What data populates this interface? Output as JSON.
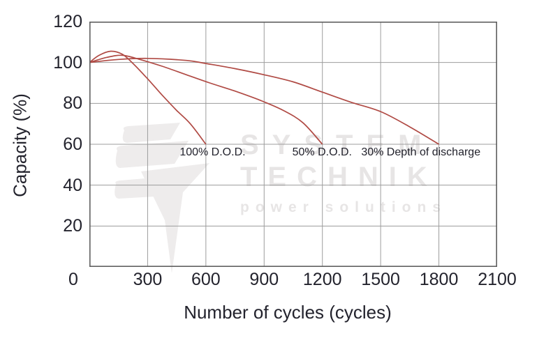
{
  "chart_data": {
    "type": "line",
    "title": "",
    "xlabel": "Number of cycles (cycles)",
    "ylabel": "Capacity (%)",
    "xlim": [
      0,
      2100
    ],
    "ylim": [
      0,
      120
    ],
    "x_ticks": [
      0,
      300,
      600,
      900,
      1200,
      1500,
      1800,
      2100
    ],
    "y_ticks": [
      20,
      40,
      60,
      80,
      100,
      120
    ],
    "grid": true,
    "legend": "inline-annotations",
    "series": [
      {
        "name": "100% D.O.D.",
        "points": [
          [
            0,
            100
          ],
          [
            50,
            103.5
          ],
          [
            110,
            105.5
          ],
          [
            170,
            104
          ],
          [
            230,
            99
          ],
          [
            300,
            92
          ],
          [
            380,
            83.5
          ],
          [
            450,
            76.5
          ],
          [
            520,
            70
          ],
          [
            600,
            60
          ]
        ]
      },
      {
        "name": "50% D.O.D.",
        "points": [
          [
            0,
            100
          ],
          [
            90,
            102.5
          ],
          [
            170,
            103.5
          ],
          [
            260,
            101.5
          ],
          [
            380,
            98
          ],
          [
            500,
            94
          ],
          [
            620,
            90
          ],
          [
            750,
            86
          ],
          [
            880,
            81.5
          ],
          [
            1000,
            76.5
          ],
          [
            1100,
            70.5
          ],
          [
            1200,
            60
          ]
        ]
      },
      {
        "name": "30% Depth of discharge",
        "points": [
          [
            0,
            100
          ],
          [
            150,
            101.5
          ],
          [
            300,
            102
          ],
          [
            500,
            101
          ],
          [
            600,
            99.5
          ],
          [
            750,
            97
          ],
          [
            900,
            94
          ],
          [
            1050,
            90.5
          ],
          [
            1200,
            85.5
          ],
          [
            1350,
            80.5
          ],
          [
            1500,
            76
          ],
          [
            1650,
            68.5
          ],
          [
            1800,
            60
          ]
        ]
      }
    ],
    "annotations": [
      {
        "text": "100% D.O.D.",
        "x": 465,
        "y": 58.6
      },
      {
        "text": "50% D.O.D.",
        "x": 1045,
        "y": 58.6
      },
      {
        "text": "30% Depth of discharge",
        "x": 1400,
        "y": 58.6
      }
    ]
  },
  "watermark": {
    "line1": "SYSTEM",
    "line2": "TECHNIK",
    "line3": "power solutions"
  },
  "colors": {
    "curve": "#b04a44",
    "grid": "#9c9c9c",
    "frame": "#5f5f5f",
    "text": "#23232d",
    "watermark": "#e7e5e5"
  }
}
